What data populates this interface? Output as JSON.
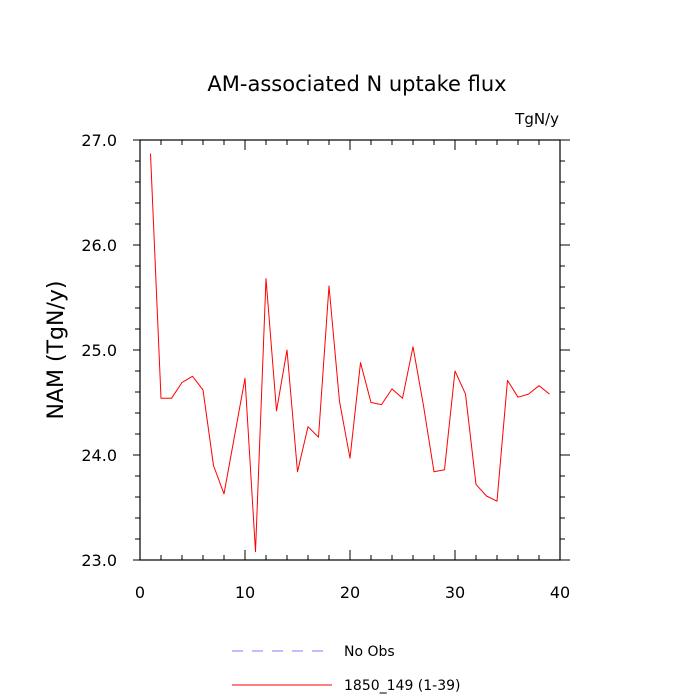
{
  "chart_data": {
    "type": "line",
    "title": "AM-associated N uptake flux",
    "units_label": "TgN/y",
    "ylabel": "NAM  (TgN/y)",
    "xlabel": "",
    "xlim": [
      0,
      40
    ],
    "ylim": [
      23.0,
      27.0
    ],
    "x_ticks": [
      0,
      10,
      20,
      30,
      40
    ],
    "x_tick_labels": [
      "0",
      "10",
      "20",
      "30",
      "40"
    ],
    "y_ticks": [
      23.0,
      24.0,
      25.0,
      26.0,
      27.0
    ],
    "y_tick_labels": [
      "23.0",
      "24.0",
      "25.0",
      "26.0",
      "27.0"
    ],
    "series": [
      {
        "name": "1850_149 (1-39)",
        "color": "#ff0000",
        "x": [
          1,
          2,
          3,
          4,
          5,
          6,
          7,
          8,
          9,
          10,
          11,
          12,
          13,
          14,
          15,
          16,
          17,
          18,
          19,
          20,
          21,
          22,
          23,
          24,
          25,
          26,
          27,
          28,
          29,
          30,
          31,
          32,
          33,
          34,
          35,
          36,
          37,
          38,
          39
        ],
        "values": [
          26.87,
          24.54,
          24.54,
          24.69,
          24.75,
          24.62,
          23.9,
          23.63,
          24.18,
          24.73,
          23.08,
          25.68,
          24.42,
          25.0,
          23.84,
          24.27,
          24.17,
          25.61,
          24.51,
          23.97,
          24.88,
          24.5,
          24.48,
          24.63,
          24.54,
          25.03,
          24.47,
          23.84,
          23.86,
          24.8,
          24.58,
          23.72,
          23.61,
          23.56,
          24.71,
          24.55,
          24.58,
          24.66,
          24.58
        ]
      }
    ],
    "legend": {
      "placement": "bottom-center",
      "entries": [
        {
          "label": "No Obs",
          "color": "#7f7fff",
          "style": "dashed"
        },
        {
          "label": "1850_149 (1-39)",
          "color": "#ff0000",
          "style": "solid"
        }
      ]
    }
  }
}
